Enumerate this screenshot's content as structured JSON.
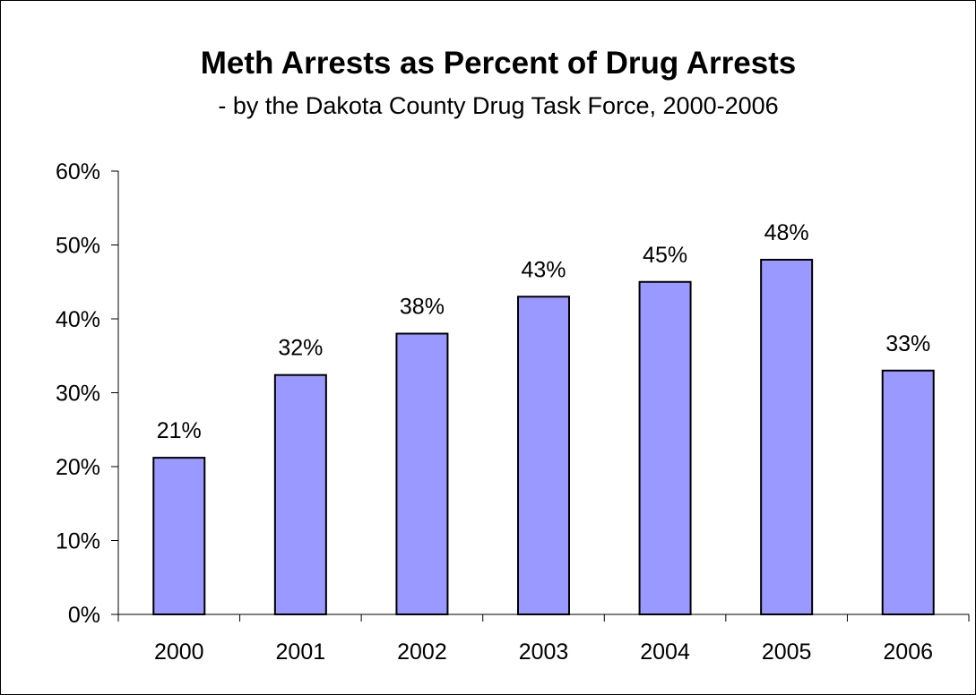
{
  "chart_data": {
    "type": "bar",
    "title": "Meth Arrests as Percent of Drug Arrests",
    "subtitle": "- by the Dakota County Drug Task Force, 2000-2006",
    "xlabel": "",
    "ylabel": "",
    "categories": [
      "2000",
      "2001",
      "2002",
      "2003",
      "2004",
      "2005",
      "2006"
    ],
    "values": [
      21.2,
      32.4,
      38.0,
      43.0,
      45.0,
      48.0,
      33.0
    ],
    "data_labels": [
      "21%",
      "32%",
      "38%",
      "43%",
      "45%",
      "48%",
      "33%"
    ],
    "ylim": [
      0,
      60
    ],
    "y_ticks": [
      0,
      10,
      20,
      30,
      40,
      50,
      60
    ],
    "y_tick_labels": [
      "0%",
      "10%",
      "20%",
      "30%",
      "40%",
      "50%",
      "60%"
    ],
    "grid": false,
    "legend": "none",
    "colors": {
      "bar_fill": "#9999FF",
      "bar_stroke": "#000000",
      "axis": "#000000",
      "background": "#FFFFFF"
    }
  }
}
